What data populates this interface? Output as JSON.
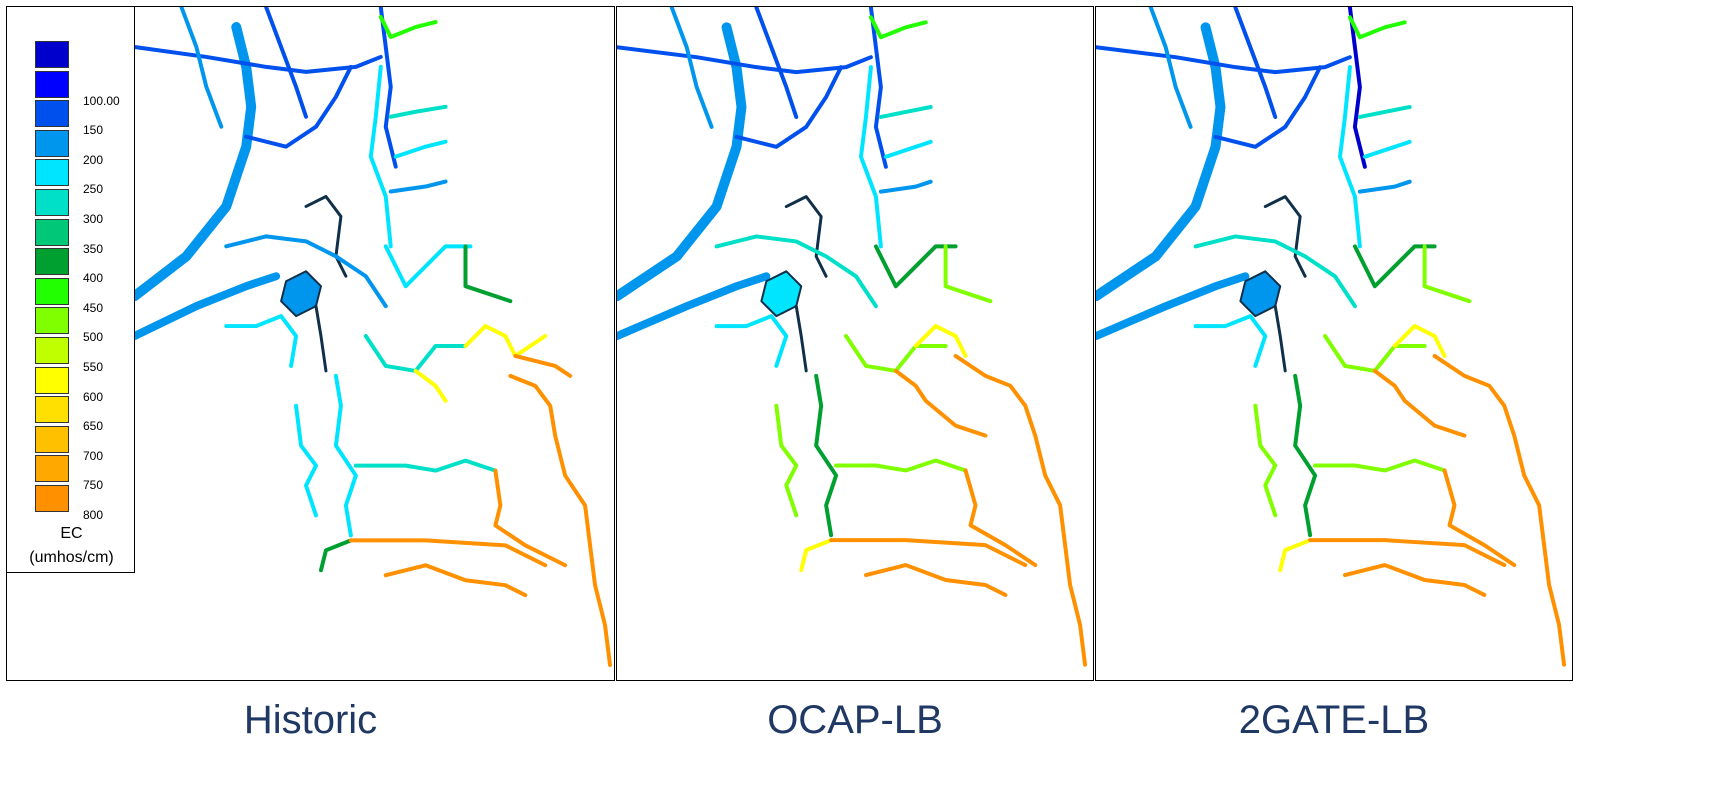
{
  "panels": [
    {
      "caption": "Historic"
    },
    {
      "caption": "OCAP-LB"
    },
    {
      "caption": "2GATE-LB"
    }
  ],
  "legend": {
    "title_line1": "EC",
    "title_line2": "(umhos/cm)",
    "colors": [
      "#0000cc",
      "#0000ff",
      "#0050ee",
      "#0096ee",
      "#00e5ff",
      "#00e0c8",
      "#00c878",
      "#00a030",
      "#22ff00",
      "#80ff00",
      "#c0ff00",
      "#ffff00",
      "#ffe000",
      "#ffc000",
      "#ffa800",
      "#ff9000"
    ],
    "labels": [
      "",
      "100.00",
      "150",
      "200",
      "250",
      "300",
      "350",
      "400",
      "450",
      "500",
      "550",
      "600",
      "650",
      "700",
      "750",
      "800"
    ]
  },
  "map_colors": {
    "blue": "#0050ee",
    "mid_blue": "#0096ee",
    "cyan": "#00e5ff",
    "teal": "#00e0c8",
    "green": "#00a030",
    "lime": "#80ff00",
    "yellow": "#ffff00",
    "orange": "#ff9000",
    "dark": "#10304a"
  }
}
